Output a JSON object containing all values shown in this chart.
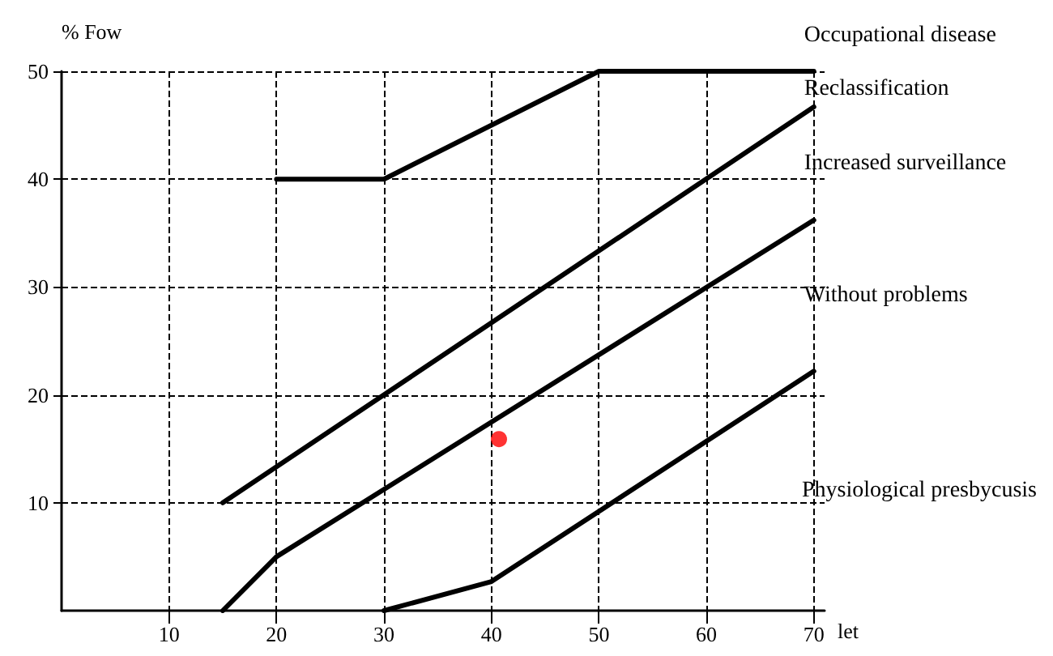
{
  "chart_data": {
    "type": "line",
    "xlabel": "let",
    "ylabel": "% Fow",
    "xlim": [
      0,
      71
    ],
    "ylim": [
      0,
      50
    ],
    "xticks": [
      10,
      20,
      30,
      40,
      50,
      60,
      70
    ],
    "yticks": [
      10,
      20,
      30,
      40,
      50
    ],
    "grid": true,
    "marker": "none",
    "line_style": "solid",
    "series": [
      {
        "color": "#000000",
        "x": [
          20,
          30,
          50,
          70
        ],
        "values": [
          40,
          40,
          50,
          50
        ]
      },
      {
        "color": "#000000",
        "x": [
          15,
          70
        ],
        "values": [
          10,
          46.7
        ]
      },
      {
        "color": "#000000",
        "x": [
          15,
          20,
          70
        ],
        "values": [
          0,
          5,
          36.2
        ]
      },
      {
        "color": "#000000",
        "x": [
          30,
          40,
          70
        ],
        "values": [
          0,
          2.7,
          22.2
        ]
      },
      {
        "type": "scatter",
        "color": "#ff0000",
        "marker": "circle",
        "x": [
          40.7
        ],
        "values": [
          15.9
        ]
      }
    ],
    "annotations": [
      "Occupational disease",
      "Reclassification",
      "Increased surveillance",
      "Without problems",
      "Physiological presbycusis"
    ]
  }
}
